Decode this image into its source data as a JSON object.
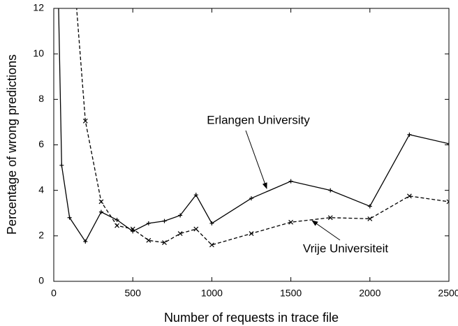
{
  "chart_data": {
    "type": "line",
    "x_label": "Number of requests in trace file",
    "y_label": "Percentage of wrong predictions",
    "xlim": [
      0,
      2500
    ],
    "xticks": [
      0,
      500,
      1000,
      1500,
      2000,
      2500
    ],
    "ylim": [
      0,
      12
    ],
    "yticks": [
      0,
      2,
      4,
      6,
      8,
      10,
      12
    ],
    "series": [
      {
        "name": "Erlangen University",
        "color": "#000000",
        "dash": "solid",
        "marker": "plus",
        "x": [
          25,
          50,
          100,
          200,
          300,
          400,
          500,
          600,
          700,
          800,
          900,
          1000,
          1250,
          1500,
          1750,
          2000,
          2250,
          2500
        ],
        "values": [
          14,
          5.1,
          2.8,
          1.75,
          3.05,
          2.7,
          2.2,
          2.55,
          2.65,
          2.9,
          3.8,
          2.55,
          3.65,
          4.4,
          4.0,
          3.3,
          6.45,
          6.05
        ]
      },
      {
        "name": "Vrije Universiteit",
        "color": "#000000",
        "dash": "dashed",
        "marker": "cross",
        "x": [
          100,
          200,
          300,
          400,
          500,
          600,
          700,
          800,
          900,
          1000,
          1250,
          1500,
          1750,
          2000,
          2250,
          2500
        ],
        "values": [
          16,
          7.05,
          3.5,
          2.45,
          2.3,
          1.8,
          1.7,
          2.1,
          2.3,
          1.6,
          2.1,
          2.6,
          2.8,
          2.75,
          3.75,
          3.5
        ]
      }
    ]
  }
}
